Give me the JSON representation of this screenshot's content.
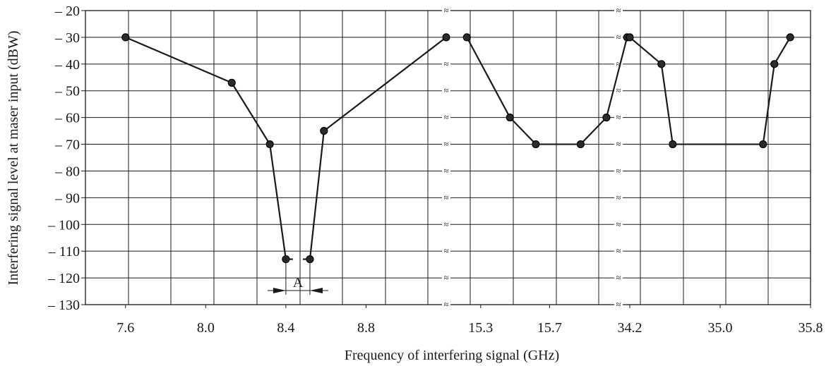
{
  "chart_data": {
    "type": "line",
    "xlabel": "Frequency of interfering signal (GHz)",
    "ylabel": "Interfering signal level at maser input (dBW)",
    "ylim": [
      -130,
      -20
    ],
    "y_ticks": [
      "– 20",
      "– 30",
      "– 40",
      "– 50",
      "– 60",
      "– 70",
      "– 80",
      "– 90",
      "– 100",
      "– 110",
      "– 120",
      "– 130"
    ],
    "grid": true,
    "axis_break_symbol": "≈",
    "segments": [
      {
        "xlim": [
          7.4,
          9.2
        ],
        "x_ticks": [
          "7.6",
          "8.0",
          "8.4",
          "8.8"
        ],
        "points": [
          {
            "x": 7.6,
            "y": -30
          },
          {
            "x": 8.13,
            "y": -47
          },
          {
            "x": 8.32,
            "y": -70
          },
          {
            "x": 8.4,
            "y": -113
          },
          {
            "x": 8.52,
            "y": -113
          },
          {
            "x": 8.59,
            "y": -65
          },
          {
            "x": 9.2,
            "y": -30
          }
        ],
        "gap_after_index": 3
      },
      {
        "xlim": [
          15.1,
          16.1
        ],
        "x_ticks": [
          "15.3",
          "15.7"
        ],
        "points": [
          {
            "x": 15.22,
            "y": -30
          },
          {
            "x": 15.47,
            "y": -60
          },
          {
            "x": 15.62,
            "y": -70
          },
          {
            "x": 15.88,
            "y": -70
          },
          {
            "x": 16.03,
            "y": -60
          },
          {
            "x": 16.15,
            "y": -30
          }
        ]
      },
      {
        "xlim": [
          34.1,
          35.8
        ],
        "x_ticks": [
          "34.2",
          "35.0",
          "35.8"
        ],
        "points": [
          {
            "x": 34.2,
            "y": -30
          },
          {
            "x": 34.48,
            "y": -40
          },
          {
            "x": 34.58,
            "y": -70
          },
          {
            "x": 35.38,
            "y": -70
          },
          {
            "x": 35.48,
            "y": -40
          },
          {
            "x": 35.62,
            "y": -30
          }
        ]
      }
    ],
    "annotation": {
      "label": "A",
      "between_x": [
        8.4,
        8.52
      ]
    }
  }
}
